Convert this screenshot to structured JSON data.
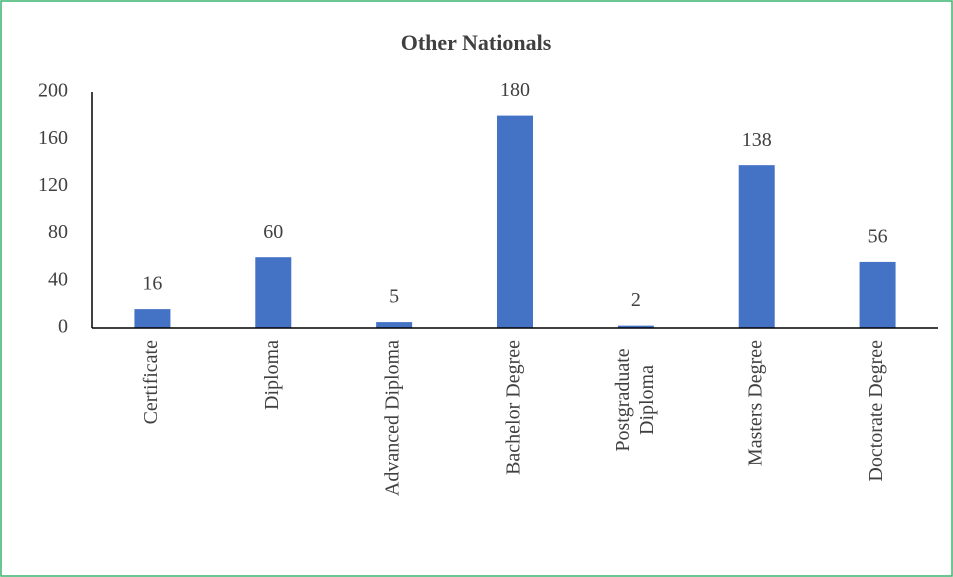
{
  "chart_data": {
    "type": "bar",
    "title": "Other Nationals",
    "categories": [
      "Certificate",
      "Diploma",
      "Advanced Diploma",
      "Bachelor Degree",
      "Postgraduate Diploma",
      "Masters Degree",
      "Doctorate Degree"
    ],
    "values": [
      16,
      60,
      5,
      180,
      2,
      138,
      56
    ],
    "color": "#4472c4",
    "ylim": [
      0,
      200
    ],
    "yticks": [
      0,
      40,
      80,
      120,
      160,
      200
    ],
    "grid": false
  }
}
